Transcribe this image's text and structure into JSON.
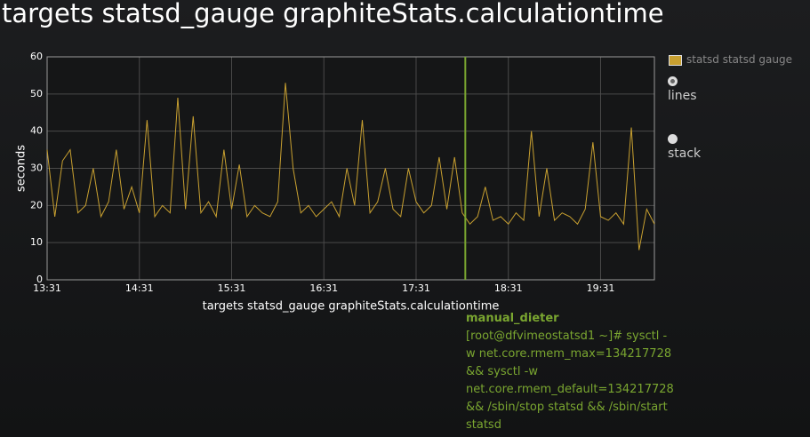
{
  "chart_data": {
    "type": "line",
    "title": "targets statsd_gauge graphiteStats.calculationtime",
    "xlabel": "targets statsd_gauge graphiteStats.calculationtime",
    "ylabel": "seconds",
    "x": [
      "13:31",
      "13:36",
      "13:41",
      "13:46",
      "13:51",
      "13:56",
      "14:01",
      "14:06",
      "14:11",
      "14:16",
      "14:21",
      "14:26",
      "14:31",
      "14:36",
      "14:41",
      "14:46",
      "14:51",
      "14:56",
      "15:01",
      "15:06",
      "15:11",
      "15:16",
      "15:21",
      "15:26",
      "15:31",
      "15:36",
      "15:41",
      "15:46",
      "15:51",
      "15:56",
      "16:01",
      "16:06",
      "16:11",
      "16:16",
      "16:21",
      "16:26",
      "16:31",
      "16:36",
      "16:41",
      "16:46",
      "16:51",
      "16:56",
      "17:01",
      "17:06",
      "17:11",
      "17:16",
      "17:21",
      "17:26",
      "17:31",
      "17:36",
      "17:41",
      "17:46",
      "17:51",
      "17:56",
      "18:01",
      "18:06",
      "18:11",
      "18:16",
      "18:21",
      "18:26",
      "18:31",
      "18:36",
      "18:41",
      "18:46",
      "18:51",
      "18:56",
      "19:01",
      "19:06",
      "19:11",
      "19:16",
      "19:21",
      "19:26",
      "19:31",
      "19:36",
      "19:41",
      "19:46",
      "19:51",
      "19:56",
      "20:01",
      "20:06"
    ],
    "series": [
      {
        "name": "statsd statsd gauge",
        "color": "#c8a030",
        "values": [
          35,
          17,
          32,
          35,
          18,
          20,
          30,
          17,
          21,
          35,
          19,
          25,
          18,
          43,
          17,
          20,
          18,
          49,
          19,
          44,
          18,
          21,
          17,
          35,
          19,
          31,
          17,
          20,
          18,
          17,
          21,
          53,
          30,
          18,
          20,
          17,
          19,
          21,
          17,
          30,
          20,
          43,
          18,
          21,
          30,
          19,
          17,
          30,
          21,
          18,
          20,
          33,
          19,
          33,
          18,
          15,
          17,
          25,
          16,
          17,
          15,
          18,
          16,
          40,
          17,
          30,
          16,
          18,
          17,
          15,
          19,
          37,
          17,
          16,
          18,
          15,
          41,
          8,
          19,
          15
        ]
      }
    ],
    "xlim": [
      "13:31",
      "20:06"
    ],
    "xticks": [
      "13:31",
      "14:31",
      "15:31",
      "16:31",
      "17:31",
      "18:31",
      "19:31"
    ],
    "ylim": [
      0,
      60
    ],
    "yticks": [
      0,
      10,
      20,
      30,
      40,
      50,
      60
    ],
    "grid": true,
    "annotations": [
      {
        "x": "18:03",
        "color": "#7aa630",
        "title": "manual_dieter",
        "text": "[root@dfvimeostatsd1 ~]# sysctl -w net.core.rmem_max=134217728 && sysctl -w net.core.rmem_default=134217728 && /sbin/stop statsd && /sbin/start statsd"
      }
    ]
  },
  "controls": [
    "lines",
    "stack"
  ]
}
